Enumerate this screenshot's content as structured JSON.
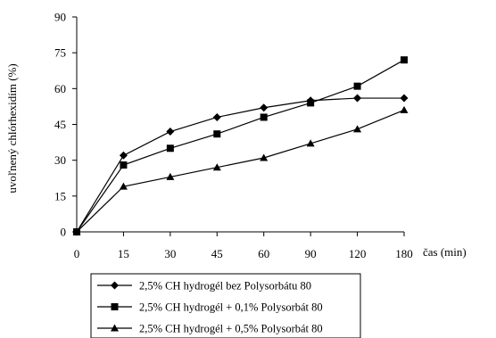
{
  "chart_data": {
    "type": "line",
    "title": "",
    "xlabel": "čas (min)",
    "ylabel": "uvoľnený chlórhexidím (%)",
    "categories": [
      "0",
      "15",
      "30",
      "45",
      "60",
      "90",
      "120",
      "180"
    ],
    "ylim": [
      0,
      90
    ],
    "yticks": [
      "0",
      "15",
      "30",
      "45",
      "60",
      "75",
      "90"
    ],
    "grid": false,
    "legend_position": "bottom",
    "series": [
      {
        "name": "2,5% CH hydrogél bez Polysorbátu 80",
        "marker": "diamond",
        "values": [
          0,
          32,
          42,
          48,
          52,
          55,
          56,
          56
        ]
      },
      {
        "name": "2,5% CH hydrogél + 0,1% Polysorbát 80",
        "marker": "square",
        "values": [
          0,
          28,
          35,
          41,
          48,
          54,
          61,
          72
        ]
      },
      {
        "name": "2,5% CH hydrogél + 0,5% Polysorbát 80",
        "marker": "triangle",
        "values": [
          0,
          19,
          23,
          27,
          31,
          37,
          43,
          51
        ]
      }
    ]
  }
}
